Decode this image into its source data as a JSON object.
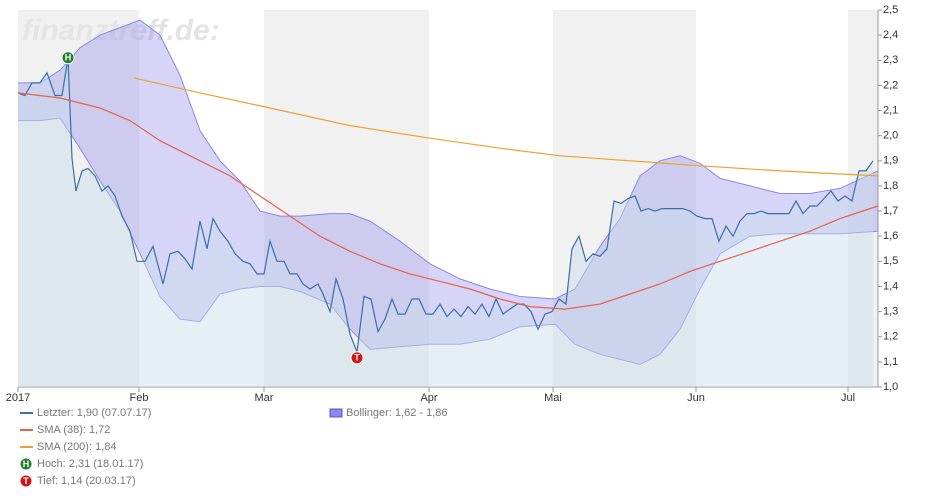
{
  "chart_data": {
    "type": "line",
    "watermark": "finanztreff.de:",
    "xlim": [
      0,
      86
    ],
    "xticks": [
      {
        "value": 0,
        "label": "2017"
      },
      {
        "value": 12.1,
        "label": "Feb"
      },
      {
        "value": 24.6,
        "label": "Mar"
      },
      {
        "value": 41.1,
        "label": "Apr"
      },
      {
        "value": 53.5,
        "label": "Mai"
      },
      {
        "value": 67.8,
        "label": "Jun"
      },
      {
        "value": 83,
        "label": "Jul"
      }
    ],
    "ylim": [
      1.0,
      2.5
    ],
    "yticks": [
      {
        "value": 1.0,
        "label": "1,0"
      },
      {
        "value": 1.1,
        "label": "1,1"
      },
      {
        "value": 1.2,
        "label": "1,2"
      },
      {
        "value": 1.3,
        "label": "1,3"
      },
      {
        "value": 1.4,
        "label": "1,4"
      },
      {
        "value": 1.5,
        "label": "1,5"
      },
      {
        "value": 1.6,
        "label": "1,6"
      },
      {
        "value": 1.7,
        "label": "1,7"
      },
      {
        "value": 1.8,
        "label": "1,8"
      },
      {
        "value": 1.9,
        "label": "1,9"
      },
      {
        "value": 2.0,
        "label": "2,0"
      },
      {
        "value": 2.1,
        "label": "2,1"
      },
      {
        "value": 2.2,
        "label": "2,2"
      },
      {
        "value": 2.3,
        "label": "2,3"
      },
      {
        "value": 2.4,
        "label": "2,4"
      },
      {
        "value": 2.5,
        "label": "2,5"
      }
    ],
    "alternate_shading": true,
    "series": [
      {
        "name": "Letzter: 1,90 (07.07.17)",
        "color": "#3a6fa5",
        "area": true,
        "x": [
          0,
          0.7,
          1.4,
          2.2,
          2.9,
          3.7,
          4.4,
          5,
          5.4,
          5.8,
          6.4,
          7,
          7.7,
          8.4,
          9,
          9.7,
          10.4,
          11.2,
          11.9,
          12.7,
          13.5,
          14.5,
          15.2,
          16,
          16.7,
          17.4,
          18.2,
          18.9,
          19.5,
          20.2,
          21,
          21.7,
          22.5,
          23.2,
          23.9,
          24.6,
          25.2,
          25.9,
          26.6,
          27.2,
          27.9,
          28.5,
          29.2,
          30,
          30.5,
          31.2,
          31.8,
          32.5,
          33.2,
          33.9,
          34.6,
          35.3,
          36,
          36.7,
          37.4,
          38,
          38.7,
          39.4,
          40.1,
          40.8,
          41.5,
          42.2,
          42.9,
          43.6,
          44.3,
          45,
          45.7,
          46.4,
          47.1,
          47.8,
          48.5,
          49.2,
          49.9,
          50.6,
          51.3,
          52,
          52.7,
          53.4,
          54.1,
          54.8,
          55.4,
          56.1,
          56.8,
          57.5,
          58.2,
          58.9,
          59.6,
          60.3,
          61,
          61.7,
          62.3,
          63,
          63.7,
          64.4,
          65.1,
          65.8,
          66.5,
          67.2,
          67.9,
          68.7,
          69.4,
          70.1,
          70.8,
          71.5,
          72.2,
          72.9,
          73.6,
          74.3,
          75,
          75.7,
          76.4,
          77.1,
          77.8,
          78.5,
          79.2,
          79.9,
          80.6,
          81.3,
          82,
          82.7,
          83.4,
          84.1,
          84.8,
          85.5
        ],
        "values": [
          2.17,
          2.16,
          2.21,
          2.21,
          2.25,
          2.16,
          2.16,
          2.31,
          1.91,
          1.78,
          1.86,
          1.87,
          1.84,
          1.78,
          1.8,
          1.76,
          1.68,
          1.62,
          1.5,
          1.5,
          1.56,
          1.41,
          1.53,
          1.54,
          1.51,
          1.47,
          1.66,
          1.55,
          1.67,
          1.62,
          1.58,
          1.53,
          1.5,
          1.49,
          1.45,
          1.45,
          1.58,
          1.5,
          1.5,
          1.45,
          1.45,
          1.41,
          1.39,
          1.41,
          1.37,
          1.3,
          1.43,
          1.35,
          1.21,
          1.14,
          1.36,
          1.35,
          1.22,
          1.27,
          1.35,
          1.29,
          1.29,
          1.35,
          1.35,
          1.29,
          1.29,
          1.33,
          1.28,
          1.31,
          1.28,
          1.32,
          1.29,
          1.33,
          1.28,
          1.35,
          1.29,
          1.31,
          1.33,
          1.33,
          1.3,
          1.23,
          1.29,
          1.3,
          1.35,
          1.33,
          1.55,
          1.6,
          1.5,
          1.53,
          1.52,
          1.55,
          1.74,
          1.73,
          1.75,
          1.76,
          1.7,
          1.71,
          1.7,
          1.71,
          1.71,
          1.71,
          1.71,
          1.7,
          1.68,
          1.67,
          1.67,
          1.58,
          1.64,
          1.6,
          1.66,
          1.69,
          1.69,
          1.7,
          1.69,
          1.69,
          1.69,
          1.69,
          1.74,
          1.69,
          1.72,
          1.72,
          1.75,
          1.78,
          1.74,
          1.76,
          1.74,
          1.86,
          1.86,
          1.9
        ]
      },
      {
        "name": "SMA (38): 1,72",
        "color": "#e8604c",
        "x": [
          0,
          4.2,
          8.2,
          11.2,
          14.2,
          18.2,
          21.2,
          24.2,
          27.2,
          30.2,
          33.2,
          36.2,
          39.2,
          42.2,
          45.2,
          48.2,
          51.2,
          54.7,
          58.2,
          61.2,
          64.2,
          67.2,
          70.2,
          73.2,
          76.2,
          79.2,
          82.2,
          86
        ],
        "values": [
          2.17,
          2.15,
          2.11,
          2.06,
          1.98,
          1.9,
          1.84,
          1.76,
          1.68,
          1.6,
          1.54,
          1.49,
          1.45,
          1.42,
          1.39,
          1.35,
          1.32,
          1.31,
          1.33,
          1.37,
          1.41,
          1.46,
          1.5,
          1.54,
          1.58,
          1.62,
          1.67,
          1.72
        ]
      },
      {
        "name": "SMA (200): 1,84",
        "color": "#f0a030",
        "x": [
          11.6,
          18.2,
          25.2,
          33.2,
          41.2,
          48.2,
          54.2,
          61.2,
          68.2,
          76.2,
          86
        ],
        "values": [
          2.23,
          2.17,
          2.11,
          2.04,
          1.99,
          1.95,
          1.92,
          1.9,
          1.88,
          1.86,
          1.84
        ]
      }
    ],
    "bollinger": {
      "name": "Bollinger: 1,62 - 1,86",
      "color": "#8a87e8",
      "x": [
        0,
        2.2,
        4.2,
        6.2,
        8.2,
        10.2,
        12.2,
        14.2,
        16.2,
        18.2,
        20.2,
        22.2,
        24.2,
        26.2,
        28.2,
        31.2,
        33.2,
        35.2,
        38.2,
        41.2,
        44.2,
        47.2,
        50.2,
        53.7,
        55.7,
        58.2,
        60.2,
        62.2,
        64.2,
        66.2,
        68.2,
        70.2,
        73.2,
        76.2,
        79.2,
        82.2,
        86
      ],
      "upper": [
        2.21,
        2.21,
        2.26,
        2.35,
        2.4,
        2.43,
        2.46,
        2.4,
        2.24,
        2.02,
        1.9,
        1.82,
        1.7,
        1.68,
        1.68,
        1.69,
        1.69,
        1.66,
        1.58,
        1.49,
        1.43,
        1.39,
        1.36,
        1.35,
        1.39,
        1.56,
        1.67,
        1.84,
        1.9,
        1.92,
        1.89,
        1.83,
        1.8,
        1.77,
        1.77,
        1.79,
        1.86
      ],
      "lower": [
        2.06,
        2.06,
        2.07,
        1.95,
        1.82,
        1.7,
        1.53,
        1.36,
        1.27,
        1.26,
        1.37,
        1.39,
        1.4,
        1.4,
        1.38,
        1.33,
        1.23,
        1.15,
        1.16,
        1.17,
        1.17,
        1.19,
        1.24,
        1.25,
        1.17,
        1.13,
        1.11,
        1.09,
        1.13,
        1.23,
        1.39,
        1.53,
        1.6,
        1.61,
        1.61,
        1.61,
        1.62
      ]
    },
    "markers": [
      {
        "label": "H",
        "name": "Hoch: 2,31 (18.01.17)",
        "x": 5,
        "value": 2.31,
        "color": "#1d7d2a"
      },
      {
        "label": "T",
        "name": "Tief: 1,14 (20.03.17)",
        "x": 33.9,
        "value": 1.14,
        "color": "#d41414"
      }
    ]
  }
}
